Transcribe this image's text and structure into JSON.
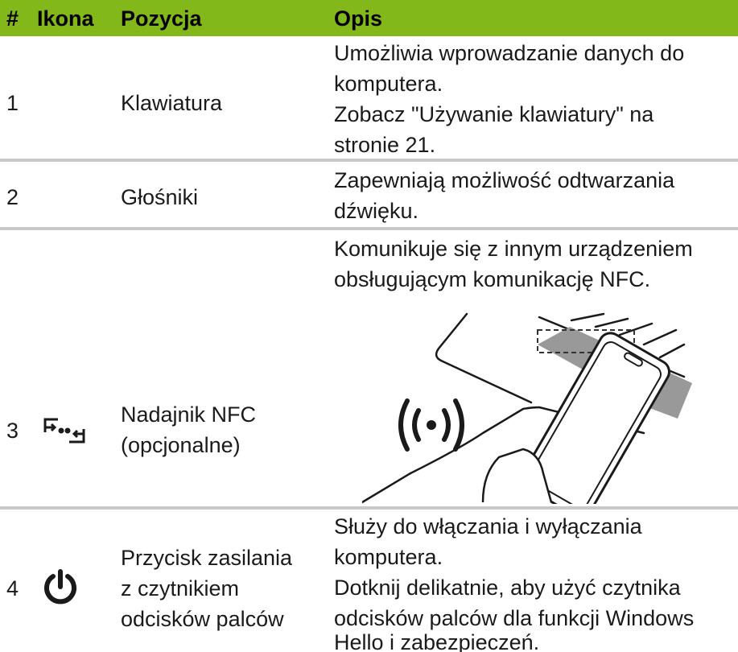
{
  "table": {
    "header": [
      "#",
      "Ikona",
      "Pozycja",
      "Opis"
    ],
    "rows": [
      {
        "number": "1",
        "position": [
          "Klawiatura"
        ],
        "description": [
          "Umożliwia wprowadzanie danych do",
          "komputera.",
          "Zobacz \"Używanie klawiatury\" na",
          "stronie 21."
        ]
      },
      {
        "number": "2",
        "position": [
          "Głośniki"
        ],
        "description": [
          "Zapewniają możliwość odtwarzania",
          "dźwięku."
        ]
      },
      {
        "number": "3",
        "position": [
          "Nadajnik NFC",
          "(opcjonalne)"
        ],
        "description": [
          "Komunikuje się z innym urządzeniem",
          "obsługującym komunikację NFC."
        ]
      },
      {
        "number": "4",
        "position": [
          "Przycisk zasilania",
          "z czytnikiem",
          "odcisków palców"
        ],
        "description": [
          "Służy do włączania i wyłączania",
          "komputera.",
          "Dotknij delikatnie, aby użyć czytnika",
          "odcisków palców dla funkcji Windows",
          "Hello i zabezpieczeń."
        ]
      }
    ]
  }
}
